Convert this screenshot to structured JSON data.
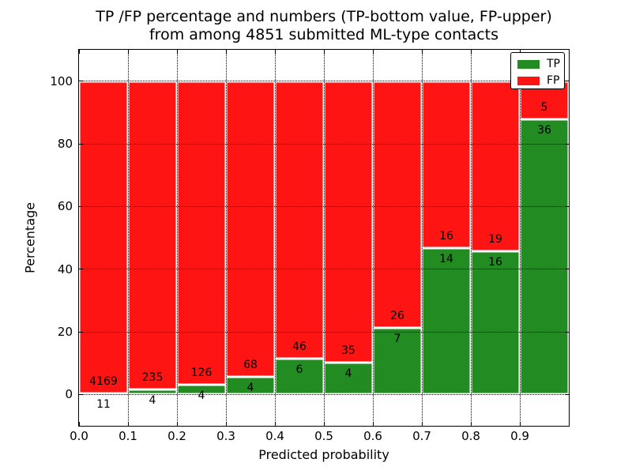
{
  "title": {
    "line1": "TP /FP percentage and numbers (TP-bottom value, FP-upper)",
    "line2": "from among 4851 submitted ML-type contacts"
  },
  "axes": {
    "xlabel": "Predicted probability",
    "ylabel": "Percentage",
    "xtick_labels": [
      "0.0",
      "0.1",
      "0.2",
      "0.3",
      "0.4",
      "0.5",
      "0.6",
      "0.7",
      "0.8",
      "0.9"
    ],
    "ytick_labels": [
      "0",
      "20",
      "40",
      "60",
      "80",
      "100"
    ],
    "yticks": [
      0,
      20,
      40,
      60,
      80,
      100
    ],
    "xlim": [
      0.0,
      1.0
    ],
    "ylim": [
      -10,
      110
    ],
    "grid": "dotted black, drawn above bars"
  },
  "legend": {
    "position": "upper right",
    "items": [
      {
        "label": "TP",
        "color": "#228b22"
      },
      {
        "label": "FP",
        "color": "#ff1414"
      }
    ]
  },
  "chart_data": {
    "type": "bar",
    "stacked": true,
    "normalized_to": 100,
    "bin_width": 0.1,
    "categories": [
      "0.0-0.1",
      "0.1-0.2",
      "0.2-0.3",
      "0.3-0.4",
      "0.4-0.5",
      "0.5-0.6",
      "0.6-0.7",
      "0.7-0.8",
      "0.8-0.9",
      "0.9-1.0"
    ],
    "bin_starts": [
      0.0,
      0.1,
      0.2,
      0.3,
      0.4,
      0.5,
      0.6,
      0.7,
      0.8,
      0.9
    ],
    "series": [
      {
        "name": "TP",
        "color": "#228b22",
        "counts": [
          11,
          4,
          4,
          4,
          6,
          4,
          7,
          14,
          16,
          36
        ]
      },
      {
        "name": "FP",
        "color": "#ff1414",
        "counts": [
          4169,
          235,
          126,
          68,
          46,
          35,
          26,
          16,
          19,
          5
        ]
      }
    ],
    "tp_percent": [
      0.26,
      1.67,
      3.08,
      5.56,
      11.54,
      10.26,
      21.21,
      46.67,
      45.71,
      87.8
    ],
    "total_contacts": 4851,
    "bar_edge_color": "#ffffff",
    "label_note": "TP count printed below TP/FP boundary, FP count printed above it",
    "title": "TP /FP percentage and numbers (TP-bottom value, FP-upper) from among 4851 submitted ML-type contacts",
    "xlabel": "Predicted probability",
    "ylabel": "Percentage"
  }
}
